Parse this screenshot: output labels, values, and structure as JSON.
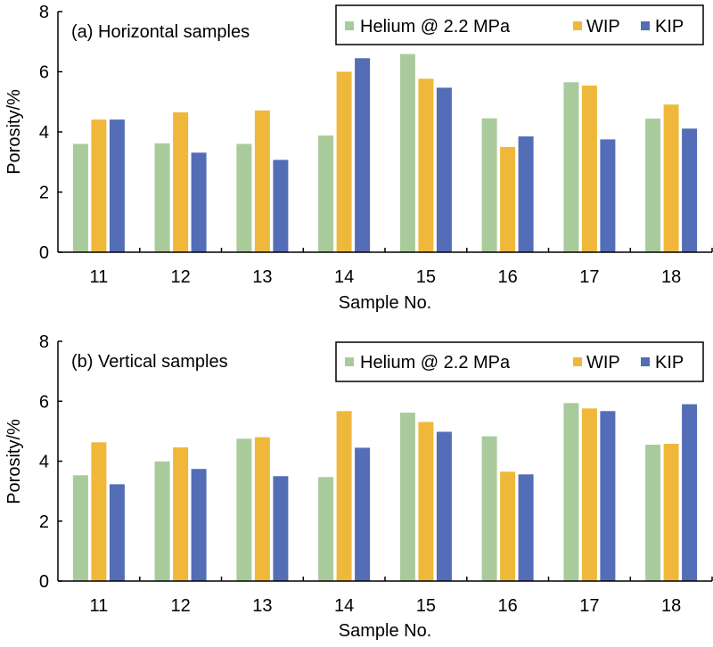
{
  "colors": {
    "helium": "#a9cb9b",
    "wip": "#f0b83a",
    "kip": "#536db6",
    "axis": "#000000"
  },
  "chart_data": [
    {
      "type": "bar",
      "title": "(a) Horizontal samples",
      "xlabel": "Sample No.",
      "ylabel": "Porosity/%",
      "ylim": [
        0,
        8
      ],
      "yticks": [
        "0",
        "2",
        "4",
        "6",
        "8"
      ],
      "ytick_values": [
        0,
        2,
        4,
        6,
        8
      ],
      "categories": [
        "11",
        "12",
        "13",
        "14",
        "15",
        "16",
        "17",
        "18"
      ],
      "legend": {
        "placement": "top-right",
        "entries": [
          "Helium @ 2.2 MPa",
          "WIP",
          "KIP"
        ]
      },
      "grid": false,
      "series": [
        {
          "name": "Helium @ 2.2 MPa",
          "color_key": "helium",
          "values": [
            3.6,
            3.62,
            3.6,
            3.88,
            6.59,
            4.45,
            5.65,
            4.44
          ]
        },
        {
          "name": "WIP",
          "color_key": "wip",
          "values": [
            4.41,
            4.65,
            4.71,
            6.0,
            5.77,
            3.5,
            5.54,
            4.91
          ]
        },
        {
          "name": "KIP",
          "color_key": "kip",
          "values": [
            4.41,
            3.31,
            3.07,
            6.45,
            5.47,
            3.85,
            3.75,
            4.11
          ]
        }
      ]
    },
    {
      "type": "bar",
      "title": "(b) Vertical samples",
      "xlabel": "Sample No.",
      "ylabel": "Porosity/%",
      "ylim": [
        0,
        8
      ],
      "yticks": [
        "0",
        "2",
        "4",
        "6",
        "8"
      ],
      "ytick_values": [
        0,
        2,
        4,
        6,
        8
      ],
      "categories": [
        "11",
        "12",
        "13",
        "14",
        "15",
        "16",
        "17",
        "18"
      ],
      "legend": {
        "placement": "top-right",
        "entries": [
          "Helium @ 2.2 MPa",
          "WIP",
          "KIP"
        ]
      },
      "grid": false,
      "series": [
        {
          "name": "Helium @ 2.2 MPa",
          "color_key": "helium",
          "values": [
            3.53,
            3.99,
            4.75,
            3.47,
            5.62,
            4.83,
            5.94,
            4.55
          ]
        },
        {
          "name": "WIP",
          "color_key": "wip",
          "values": [
            4.63,
            4.46,
            4.8,
            5.67,
            5.31,
            3.65,
            5.76,
            4.58
          ]
        },
        {
          "name": "KIP",
          "color_key": "kip",
          "values": [
            3.23,
            3.74,
            3.5,
            4.45,
            4.98,
            3.56,
            5.67,
            5.9
          ]
        }
      ]
    }
  ]
}
